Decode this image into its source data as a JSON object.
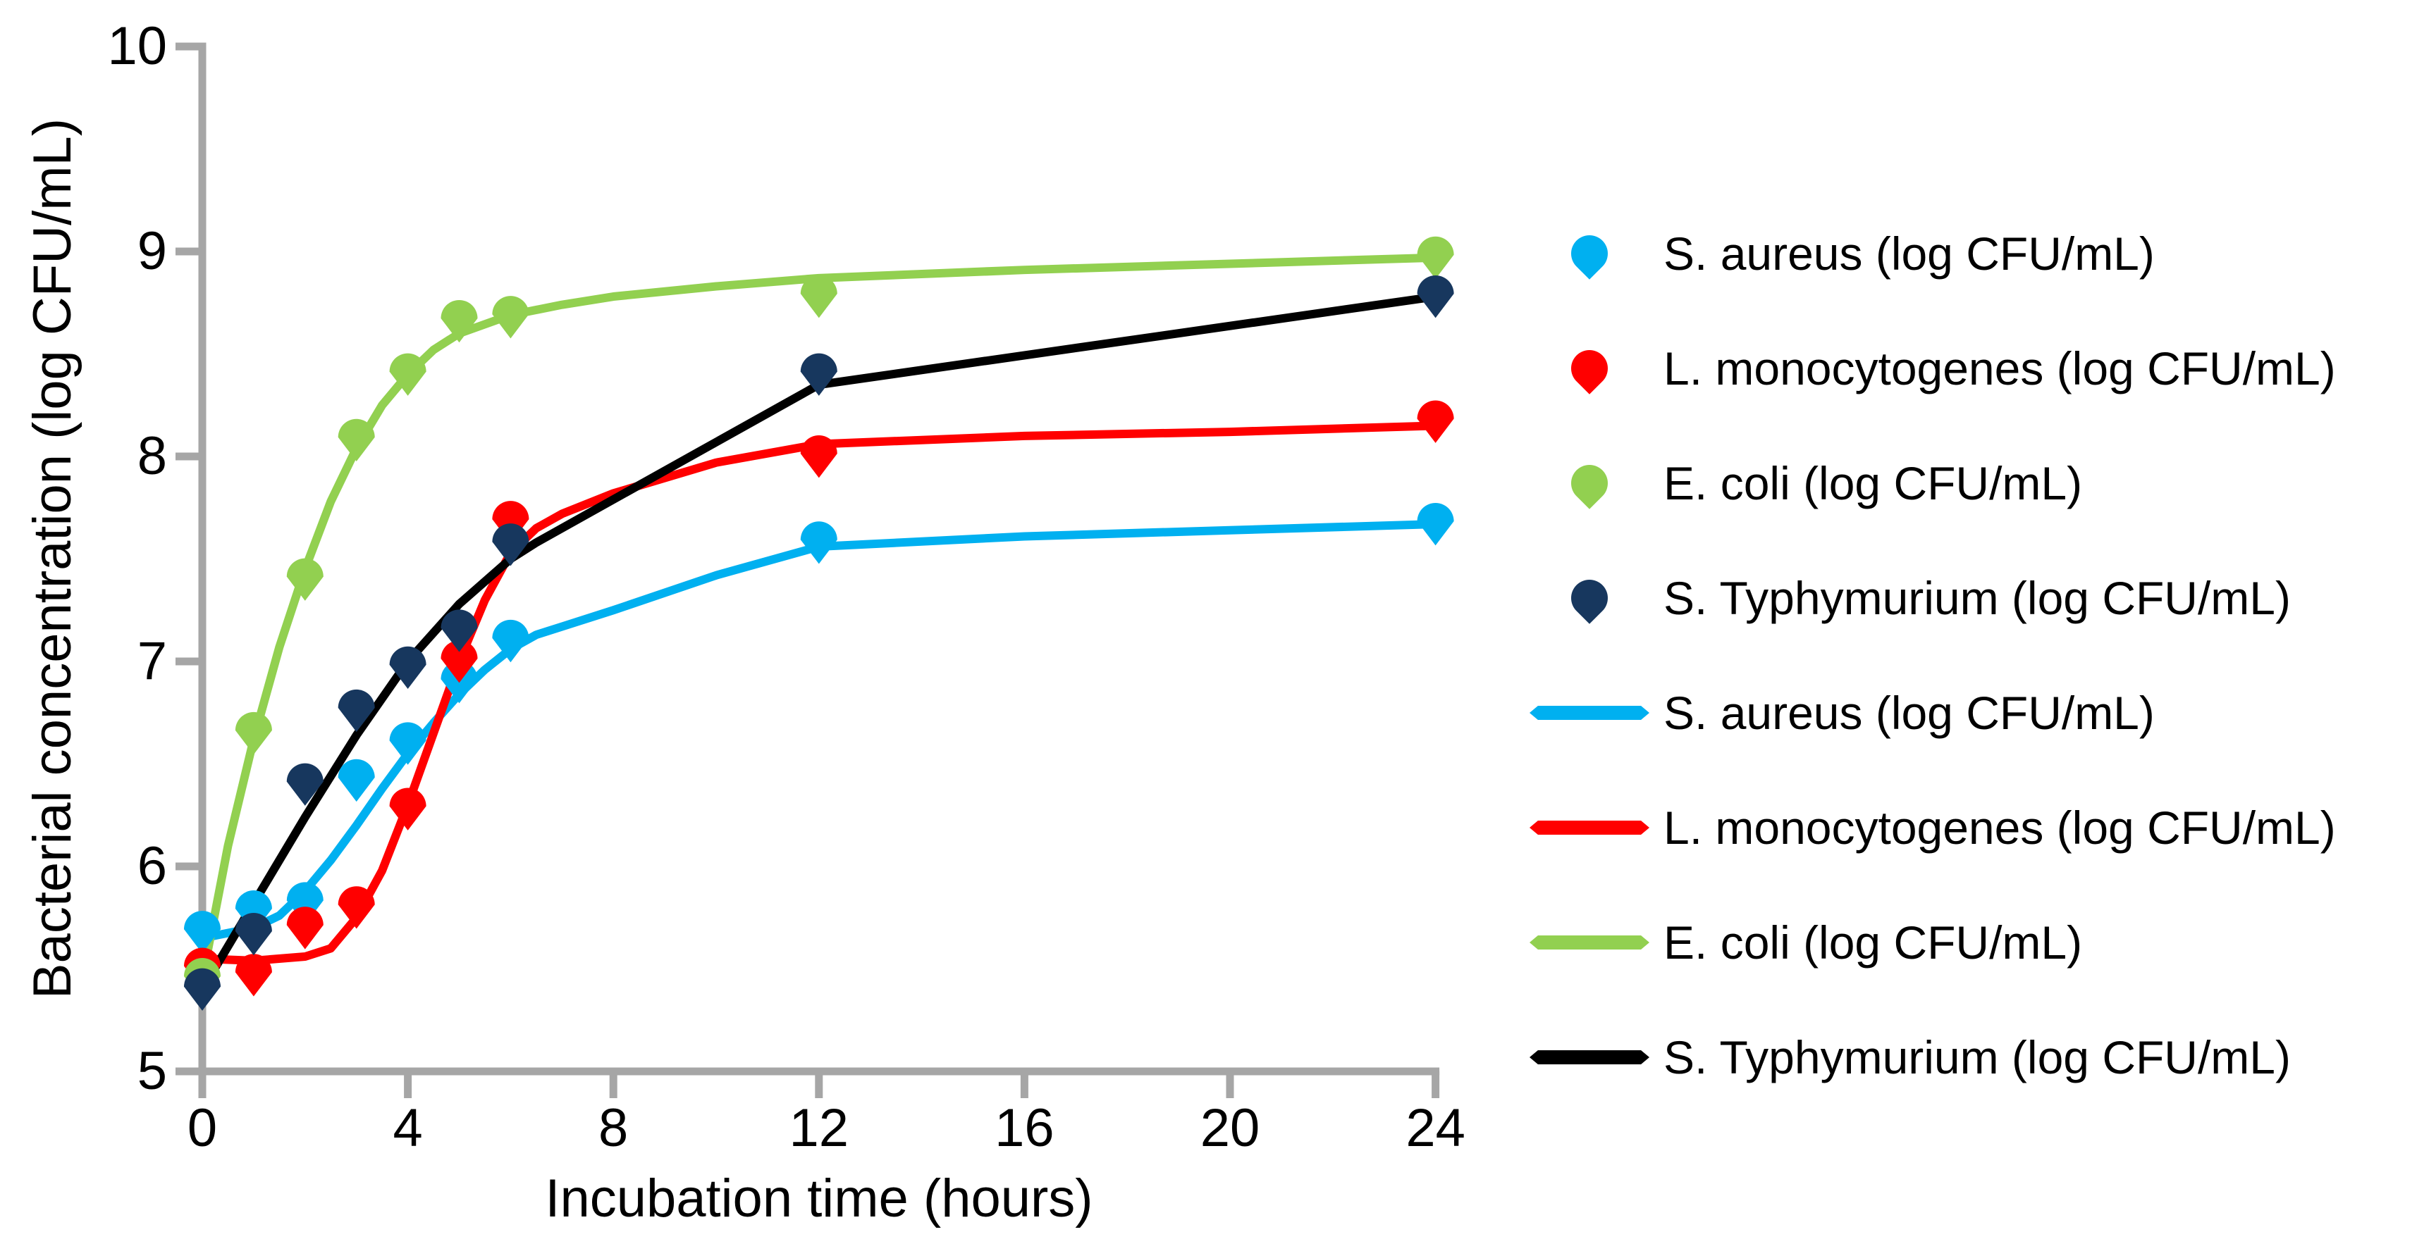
{
  "axes_color": "#A6A6A6",
  "text_color": "#000000",
  "legend": {
    "entries": [
      {
        "label": "S. aureus (log CFU/mL)",
        "swatch": "marker",
        "color": "#00B0F0"
      },
      {
        "label": "L. monocytogenes (log CFU/mL)",
        "swatch": "marker",
        "color": "#FF0000"
      },
      {
        "label": "E. coli (log CFU/mL)",
        "swatch": "marker",
        "color": "#92D050"
      },
      {
        "label": "S. Typhymurium (log CFU/mL)",
        "swatch": "marker",
        "color": "#17375E"
      },
      {
        "label": "S. aureus (log CFU/mL)",
        "swatch": "line",
        "color": "#00B0F0"
      },
      {
        "label": "L. monocytogenes (log CFU/mL)",
        "swatch": "line",
        "color": "#FF0000"
      },
      {
        "label": "E. coli (log CFU/mL)",
        "swatch": "line",
        "color": "#92D050"
      },
      {
        "label": "S. Typhymurium (log CFU/mL)",
        "swatch": "line",
        "color": "#000000"
      }
    ]
  },
  "chart_data": {
    "type": "line",
    "title": "",
    "xlabel": "Incubation time (hours)",
    "ylabel": "Bacterial concentration (log CFU/mL)",
    "xlim": [
      0,
      24
    ],
    "ylim": [
      5,
      10
    ],
    "xticks": [
      0,
      4,
      8,
      12,
      16,
      20,
      24
    ],
    "yticks": [
      5,
      6,
      7,
      8,
      9,
      10
    ],
    "grid": false,
    "legend_position": "right",
    "marker_series": [
      {
        "id": "s-aureus",
        "name": "S. aureus (log CFU/mL)",
        "color": "#00B0F0",
        "x": [
          0,
          1,
          2,
          3,
          4,
          5,
          6,
          12,
          24
        ],
        "y": [
          5.68,
          5.78,
          5.82,
          6.42,
          6.6,
          6.9,
          7.1,
          7.58,
          7.67
        ]
      },
      {
        "id": "l-monocytogenes",
        "name": "L. monocytogenes (log CFU/mL)",
        "color": "#FF0000",
        "x": [
          0,
          1,
          2,
          3,
          4,
          5,
          6,
          12,
          24
        ],
        "y": [
          5.5,
          5.47,
          5.7,
          5.8,
          6.28,
          7.0,
          7.68,
          8.0,
          8.17
        ]
      },
      {
        "id": "e-coli",
        "name": "E. coli (log CFU/mL)",
        "color": "#92D050",
        "x": [
          0,
          1,
          2,
          3,
          4,
          5,
          6,
          12,
          24
        ],
        "y": [
          5.45,
          6.65,
          7.4,
          8.08,
          8.4,
          8.66,
          8.68,
          8.78,
          8.97
        ]
      },
      {
        "id": "s-typhymurium",
        "name": "S. Typhymurium (log CFU/mL)",
        "color": "#17375E",
        "x": [
          0,
          1,
          2,
          3,
          4,
          5,
          6,
          12,
          24
        ],
        "y": [
          5.4,
          5.67,
          6.4,
          6.76,
          6.97,
          7.15,
          7.57,
          8.4,
          8.78
        ]
      }
    ],
    "line_series": [
      {
        "id": "s-aureus-fit",
        "name": "S. aureus (log CFU/mL)",
        "color": "#00B0F0",
        "points": [
          [
            0,
            5.65
          ],
          [
            1,
            5.7
          ],
          [
            1.5,
            5.76
          ],
          [
            2,
            5.88
          ],
          [
            2.5,
            6.03
          ],
          [
            3,
            6.2
          ],
          [
            3.5,
            6.38
          ],
          [
            4,
            6.55
          ],
          [
            4.5,
            6.7
          ],
          [
            5,
            6.84
          ],
          [
            5.5,
            6.96
          ],
          [
            6,
            7.06
          ],
          [
            6.5,
            7.13
          ],
          [
            7,
            7.17
          ],
          [
            8,
            7.25
          ],
          [
            10,
            7.42
          ],
          [
            12,
            7.56
          ],
          [
            16,
            7.61
          ],
          [
            20,
            7.64
          ],
          [
            24,
            7.67
          ]
        ]
      },
      {
        "id": "l-monocytogenes-fit",
        "name": "L. monocytogenes (log CFU/mL)",
        "color": "#FF0000",
        "points": [
          [
            0,
            5.55
          ],
          [
            1,
            5.54
          ],
          [
            2,
            5.56
          ],
          [
            2.5,
            5.6
          ],
          [
            3,
            5.75
          ],
          [
            3.5,
            5.98
          ],
          [
            4,
            6.3
          ],
          [
            4.5,
            6.65
          ],
          [
            5,
            7.0
          ],
          [
            5.5,
            7.3
          ],
          [
            6,
            7.53
          ],
          [
            6.5,
            7.65
          ],
          [
            7,
            7.72
          ],
          [
            8,
            7.82
          ],
          [
            10,
            7.97
          ],
          [
            12,
            8.06
          ],
          [
            16,
            8.1
          ],
          [
            20,
            8.12
          ],
          [
            24,
            8.15
          ]
        ]
      },
      {
        "id": "e-coli-fit",
        "name": "E. coli (log CFU/mL)",
        "color": "#92D050",
        "points": [
          [
            0,
            5.45
          ],
          [
            0.5,
            6.1
          ],
          [
            1,
            6.62
          ],
          [
            1.5,
            7.07
          ],
          [
            2,
            7.45
          ],
          [
            2.5,
            7.78
          ],
          [
            3,
            8.04
          ],
          [
            3.5,
            8.25
          ],
          [
            4,
            8.4
          ],
          [
            4.5,
            8.52
          ],
          [
            5,
            8.6
          ],
          [
            6,
            8.69
          ],
          [
            7,
            8.74
          ],
          [
            8,
            8.78
          ],
          [
            10,
            8.83
          ],
          [
            12,
            8.87
          ],
          [
            16,
            8.91
          ],
          [
            20,
            8.94
          ],
          [
            24,
            8.97
          ]
        ]
      },
      {
        "id": "s-typhymurium-fit",
        "name": "S. Typhymurium (log CFU/mL)",
        "color": "#000000",
        "points": [
          [
            0,
            5.4
          ],
          [
            1,
            5.82
          ],
          [
            2,
            6.24
          ],
          [
            3,
            6.64
          ],
          [
            4,
            7.0
          ],
          [
            5,
            7.28
          ],
          [
            6,
            7.5
          ],
          [
            6.5,
            7.58
          ],
          [
            12,
            8.35
          ],
          [
            24,
            8.78
          ]
        ]
      }
    ]
  }
}
